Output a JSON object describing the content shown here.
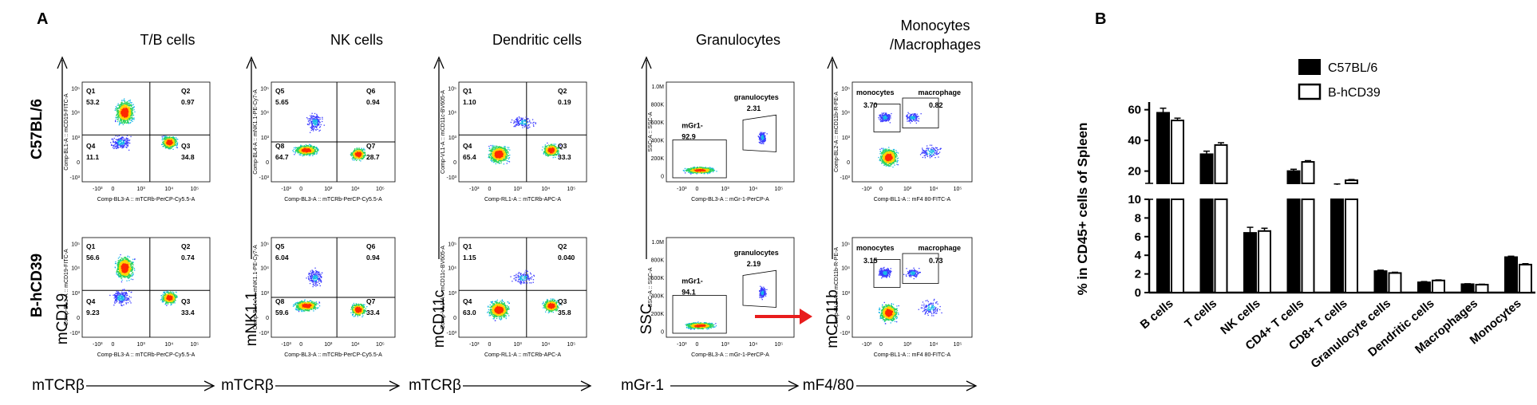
{
  "panel_a": {
    "letter": "A",
    "rows": [
      "C57BL/6",
      "B-hCD39"
    ],
    "columns": [
      {
        "title": "T/B cells",
        "xmarker": "mTCRβ",
        "ymarker": "mCD19",
        "xaxis": "Comp-BL3-A :: mTCRb-PerCP-Cy5.5-A",
        "yaxis": "Comp-BL1-A :: mCD19-FITC-A",
        "gates": [
          "Q1",
          "Q2",
          "Q3",
          "Q4"
        ],
        "values": [
          [
            "53.2",
            "0.97",
            "34.8",
            "11.1"
          ],
          [
            "56.6",
            "0.74",
            "33.4",
            "9.23"
          ]
        ]
      },
      {
        "title": "NK cells",
        "xmarker": "mTCRβ",
        "ymarker": "mNK1.1",
        "xaxis": "Comp-BL3-A :: mTCRb-PerCP-Cy5.5-A",
        "yaxis": "Comp-BL4-A :: mNK1.1-PE-Cy7-A",
        "gates": [
          "Q5",
          "Q6",
          "Q7",
          "Q8"
        ],
        "values": [
          [
            "5.65",
            "0.94",
            "28.7",
            "64.7"
          ],
          [
            "6.04",
            "0.94",
            "33.4",
            "59.6"
          ]
        ]
      },
      {
        "title": "Dendritic cells",
        "xmarker": "mTCRβ",
        "ymarker": "mCD11c",
        "xaxis": "Comp-RL1-A :: mTCRb-APC-A",
        "yaxis": "Comp-VL1-A :: mCD11c-BV605-A",
        "gates": [
          "Q1",
          "Q2",
          "Q3",
          "Q4"
        ],
        "values": [
          [
            "1.10",
            "0.19",
            "33.3",
            "65.4"
          ],
          [
            "1.15",
            "0.040",
            "35.8",
            "63.0"
          ]
        ]
      },
      {
        "title": "Granulocytes",
        "xmarker": "mGr-1",
        "ymarker": "SSC",
        "xaxis": "Comp-BL3-A :: mGr-1-PerCP-A",
        "yaxis": "SSC-A :: SSC-A",
        "gates": [
          "granulocytes",
          "mGr1-"
        ],
        "values": [
          [
            "2.31",
            "92.9"
          ],
          [
            "2.19",
            "94.1"
          ]
        ]
      },
      {
        "title": "Monocytes /Macrophages",
        "xmarker": "mF4/80",
        "ymarker": "mCD11b",
        "xaxis": "Comp-BL1-A :: mF4 80-FITC-A",
        "yaxis": "Comp-BL2-A :: mCD11b-R-PE-A",
        "gates": [
          "monocytes",
          "macrophage"
        ],
        "values": [
          [
            "3.70",
            "0.82"
          ],
          [
            "3.15",
            "0.73"
          ]
        ]
      }
    ],
    "ssc_ticks": [
      "1.0M",
      "800K",
      "600K",
      "400K",
      "200K",
      "0"
    ]
  },
  "chart_data": {
    "panel": "B",
    "type": "bar",
    "ylabel": "% in CD45+ cells of Spleen",
    "categories": [
      "B cells",
      "T cells",
      "NK cells",
      "CD4+ T cells",
      "CD8+ T cells",
      "Granulocyte cells",
      "Dendritic cells",
      "Macrophages",
      "Monocytes"
    ],
    "series": [
      {
        "name": "C57BL/6",
        "values": [
          58,
          31,
          6.4,
          20,
          11,
          2.3,
          1.1,
          0.9,
          3.8
        ],
        "errors": [
          3,
          2,
          0.6,
          1.2,
          0.6,
          0.1,
          0.08,
          0.05,
          0.1
        ],
        "color": "#000000"
      },
      {
        "name": "B-hCD39",
        "values": [
          53,
          37,
          6.6,
          26,
          14,
          2.1,
          1.3,
          0.85,
          3.0
        ],
        "errors": [
          1.5,
          1.5,
          0.3,
          0.8,
          0.5,
          0.08,
          0.06,
          0.05,
          0.1
        ],
        "color": "#ffffff"
      }
    ],
    "yticks_lower": [
      0,
      2,
      4,
      6,
      8,
      10
    ],
    "yticks_upper": [
      20,
      40,
      60
    ],
    "ybreak": [
      10,
      12
    ],
    "legend": "top"
  }
}
